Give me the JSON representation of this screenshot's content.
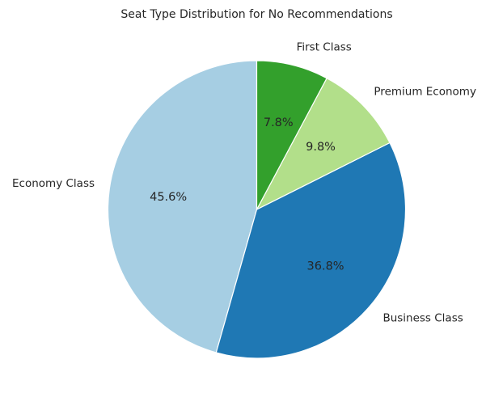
{
  "chart_data": {
    "type": "pie",
    "title": "Seat Type Distribution for No Recommendations",
    "categories": [
      "Economy Class",
      "Business Class",
      "Premium Economy",
      "First Class"
    ],
    "values": [
      45.6,
      36.8,
      9.8,
      7.8
    ],
    "percent_labels": [
      "45.6%",
      "36.8%",
      "9.8%",
      "7.8%"
    ],
    "colors": [
      "#a6cee3",
      "#1f78b4",
      "#b2df8a",
      "#33a02c"
    ],
    "start_angle_deg": 90,
    "direction": "counterclockwise",
    "legend": "none"
  }
}
